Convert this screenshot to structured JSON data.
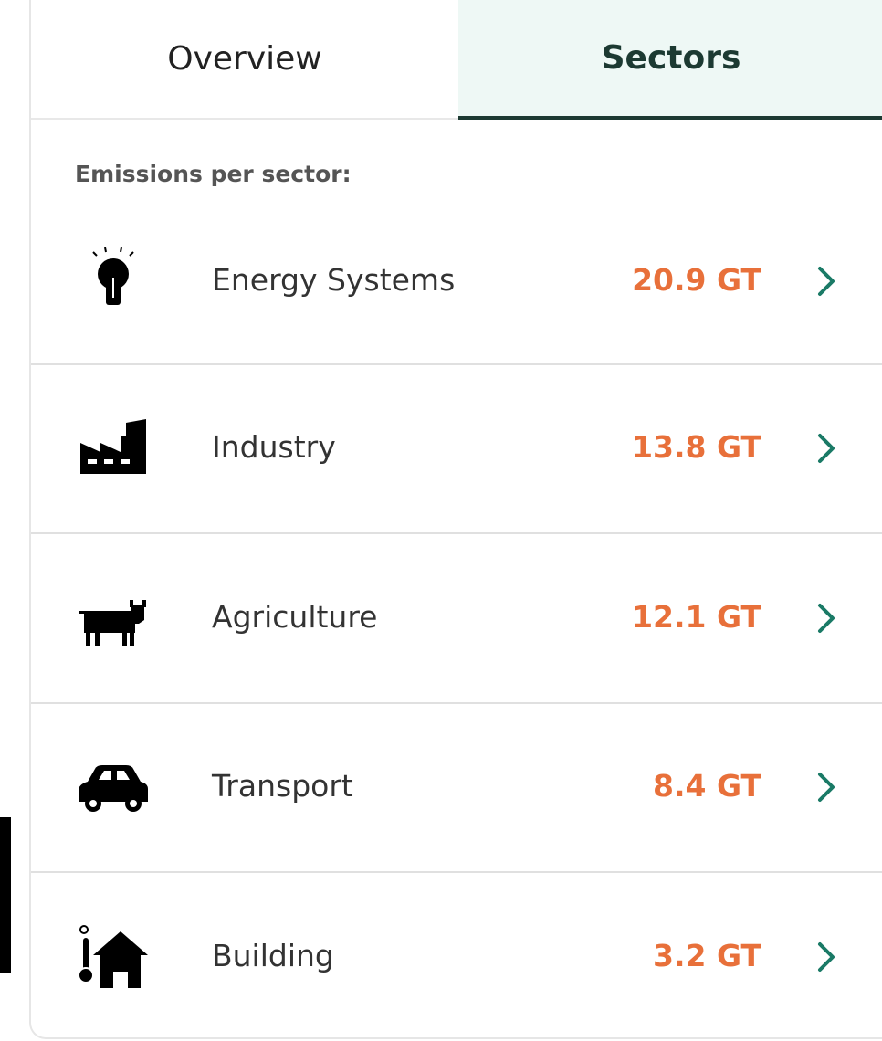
{
  "tabs": [
    "Overview",
    "Sectors"
  ],
  "heading": "Emissions per sector:",
  "sectors": [
    {
      "name": "Energy Systems",
      "value": "20.9 GT"
    },
    {
      "name": "Industry",
      "value": "13.8 GT"
    },
    {
      "name": "Agriculture",
      "value": "12.1 GT"
    },
    {
      "name": "Transport",
      "value": "8.4 GT"
    },
    {
      "name": "Building",
      "value": "3.2 GT"
    }
  ]
}
